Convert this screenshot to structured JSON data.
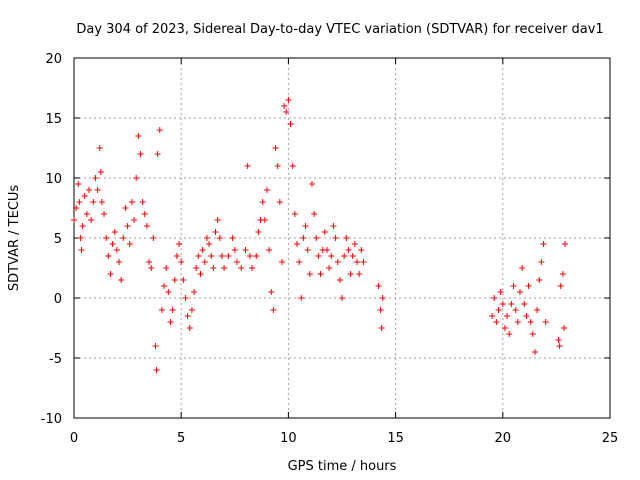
{
  "chart_data": {
    "type": "scatter",
    "title": "Day 304 of 2023, Sidereal Day-to-day VTEC variation (SDTVAR) for receiver dav1",
    "xlabel": "GPS time / hours",
    "ylabel": "SDTVAR / TECUs",
    "xlim": [
      0,
      25
    ],
    "ylim": [
      -10,
      20
    ],
    "xticks": [
      0,
      5,
      10,
      15,
      20,
      25
    ],
    "yticks": [
      -10,
      -5,
      0,
      5,
      10,
      15,
      20
    ],
    "grid": true,
    "marker": "+",
    "series": [
      {
        "name": "SDTVAR",
        "color": "#ff0000",
        "points": [
          [
            0.0,
            6.5
          ],
          [
            0.1,
            7.5
          ],
          [
            0.2,
            9.5
          ],
          [
            0.25,
            8.0
          ],
          [
            0.3,
            5.0
          ],
          [
            0.35,
            4.0
          ],
          [
            0.4,
            6.0
          ],
          [
            0.5,
            8.5
          ],
          [
            0.6,
            7.0
          ],
          [
            0.7,
            9.0
          ],
          [
            0.8,
            6.5
          ],
          [
            0.9,
            8.0
          ],
          [
            1.0,
            10.0
          ],
          [
            1.1,
            9.0
          ],
          [
            1.2,
            12.5
          ],
          [
            1.25,
            10.5
          ],
          [
            1.3,
            8.0
          ],
          [
            1.4,
            7.0
          ],
          [
            1.5,
            5.0
          ],
          [
            1.6,
            3.5
          ],
          [
            1.7,
            2.0
          ],
          [
            1.8,
            4.5
          ],
          [
            1.9,
            5.5
          ],
          [
            2.0,
            4.0
          ],
          [
            2.1,
            3.0
          ],
          [
            2.2,
            1.5
          ],
          [
            2.3,
            5.0
          ],
          [
            2.4,
            7.5
          ],
          [
            2.5,
            6.0
          ],
          [
            2.6,
            4.5
          ],
          [
            2.7,
            8.0
          ],
          [
            2.8,
            6.5
          ],
          [
            2.9,
            10.0
          ],
          [
            3.0,
            13.5
          ],
          [
            3.1,
            12.0
          ],
          [
            3.2,
            8.0
          ],
          [
            3.3,
            7.0
          ],
          [
            3.4,
            6.0
          ],
          [
            3.5,
            3.0
          ],
          [
            3.6,
            2.5
          ],
          [
            3.7,
            5.0
          ],
          [
            3.8,
            -4.0
          ],
          [
            3.85,
            -6.0
          ],
          [
            3.9,
            12.0
          ],
          [
            4.0,
            14.0
          ],
          [
            4.1,
            -1.0
          ],
          [
            4.2,
            1.0
          ],
          [
            4.3,
            2.5
          ],
          [
            4.4,
            0.5
          ],
          [
            4.5,
            -2.0
          ],
          [
            4.6,
            -1.0
          ],
          [
            4.7,
            1.5
          ],
          [
            4.8,
            3.5
          ],
          [
            4.9,
            4.5
          ],
          [
            5.0,
            3.0
          ],
          [
            5.1,
            1.5
          ],
          [
            5.2,
            0.0
          ],
          [
            5.3,
            -1.5
          ],
          [
            5.4,
            -2.5
          ],
          [
            5.5,
            -1.0
          ],
          [
            5.6,
            0.5
          ],
          [
            5.7,
            2.5
          ],
          [
            5.8,
            3.5
          ],
          [
            5.9,
            2.0
          ],
          [
            6.0,
            4.0
          ],
          [
            6.1,
            3.0
          ],
          [
            6.2,
            5.0
          ],
          [
            6.3,
            4.5
          ],
          [
            6.4,
            3.5
          ],
          [
            6.5,
            2.5
          ],
          [
            6.6,
            5.5
          ],
          [
            6.7,
            6.5
          ],
          [
            6.8,
            5.0
          ],
          [
            6.9,
            3.5
          ],
          [
            7.0,
            2.5
          ],
          [
            7.2,
            3.5
          ],
          [
            7.4,
            5.0
          ],
          [
            7.5,
            4.0
          ],
          [
            7.6,
            3.0
          ],
          [
            7.8,
            2.5
          ],
          [
            8.0,
            4.0
          ],
          [
            8.1,
            11.0
          ],
          [
            8.2,
            3.5
          ],
          [
            8.3,
            2.5
          ],
          [
            8.5,
            3.5
          ],
          [
            8.6,
            5.5
          ],
          [
            8.7,
            6.5
          ],
          [
            8.8,
            8.0
          ],
          [
            8.9,
            6.5
          ],
          [
            9.0,
            9.0
          ],
          [
            9.1,
            4.0
          ],
          [
            9.2,
            0.5
          ],
          [
            9.3,
            -1.0
          ],
          [
            9.4,
            12.5
          ],
          [
            9.5,
            11.0
          ],
          [
            9.6,
            8.0
          ],
          [
            9.7,
            3.0
          ],
          [
            9.8,
            16.0
          ],
          [
            9.9,
            15.5
          ],
          [
            10.0,
            16.5
          ],
          [
            10.1,
            14.5
          ],
          [
            10.2,
            11.0
          ],
          [
            10.3,
            7.0
          ],
          [
            10.4,
            4.5
          ],
          [
            10.5,
            3.0
          ],
          [
            10.6,
            0.0
          ],
          [
            10.7,
            5.0
          ],
          [
            10.8,
            6.0
          ],
          [
            10.9,
            4.0
          ],
          [
            11.0,
            2.0
          ],
          [
            11.1,
            9.5
          ],
          [
            11.2,
            7.0
          ],
          [
            11.3,
            5.0
          ],
          [
            11.4,
            3.5
          ],
          [
            11.5,
            2.0
          ],
          [
            11.6,
            4.0
          ],
          [
            11.7,
            5.5
          ],
          [
            11.8,
            4.0
          ],
          [
            11.9,
            2.5
          ],
          [
            12.0,
            3.5
          ],
          [
            12.1,
            6.0
          ],
          [
            12.2,
            5.0
          ],
          [
            12.3,
            3.0
          ],
          [
            12.4,
            1.5
          ],
          [
            12.5,
            0.0
          ],
          [
            12.6,
            3.5
          ],
          [
            12.7,
            5.0
          ],
          [
            12.8,
            4.0
          ],
          [
            12.9,
            2.0
          ],
          [
            13.0,
            3.5
          ],
          [
            13.1,
            4.5
          ],
          [
            13.2,
            3.0
          ],
          [
            13.3,
            2.0
          ],
          [
            13.4,
            4.0
          ],
          [
            13.5,
            3.0
          ],
          [
            14.2,
            1.0
          ],
          [
            14.3,
            -1.0
          ],
          [
            14.35,
            -2.5
          ],
          [
            14.4,
            0.0
          ],
          [
            19.5,
            -1.5
          ],
          [
            19.6,
            0.0
          ],
          [
            19.7,
            -2.0
          ],
          [
            19.8,
            -1.0
          ],
          [
            19.9,
            0.5
          ],
          [
            20.0,
            -0.5
          ],
          [
            20.1,
            -2.5
          ],
          [
            20.2,
            -1.5
          ],
          [
            20.3,
            -3.0
          ],
          [
            20.4,
            -0.5
          ],
          [
            20.5,
            1.0
          ],
          [
            20.6,
            -1.0
          ],
          [
            20.7,
            -2.0
          ],
          [
            20.8,
            0.5
          ],
          [
            20.9,
            2.5
          ],
          [
            21.0,
            -0.5
          ],
          [
            21.1,
            -1.5
          ],
          [
            21.2,
            1.0
          ],
          [
            21.3,
            -2.0
          ],
          [
            21.4,
            -3.0
          ],
          [
            21.5,
            -4.5
          ],
          [
            21.6,
            -1.0
          ],
          [
            21.7,
            1.5
          ],
          [
            21.8,
            3.0
          ],
          [
            21.9,
            4.5
          ],
          [
            22.0,
            -2.0
          ],
          [
            22.6,
            -3.5
          ],
          [
            22.65,
            -4.0
          ],
          [
            22.7,
            1.0
          ],
          [
            22.8,
            2.0
          ],
          [
            22.85,
            -2.5
          ],
          [
            22.9,
            4.5
          ]
        ]
      }
    ]
  }
}
